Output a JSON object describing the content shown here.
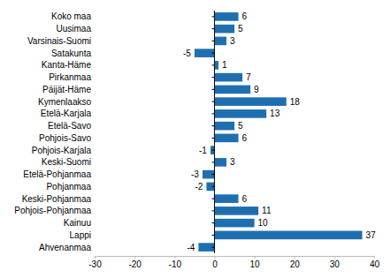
{
  "chart_data": {
    "type": "bar",
    "orientation": "horizontal",
    "categories": [
      "Koko maa",
      "Uusimaa",
      "Varsinais-Suomi",
      "Satakunta",
      "Kanta-Häme",
      "Pirkanmaa",
      "Päijät-Häme",
      "Kymenlaakso",
      "Etelä-Karjala",
      "Etelä-Savo",
      "Pohjois-Savo",
      "Pohjois-Karjala",
      "Keski-Suomi",
      "Etelä-Pohjanmaa",
      "Pohjanmaa",
      "Keski-Pohjanmaa",
      "Pohjois-Pohjanmaa",
      "Kainuu",
      "Lappi",
      "Ahvenanmaa"
    ],
    "values": [
      6,
      5,
      3,
      -5,
      1,
      7,
      9,
      18,
      13,
      5,
      6,
      -1,
      3,
      -3,
      -2,
      6,
      11,
      10,
      37,
      -4
    ],
    "color": "#1f6fb0",
    "xlim": [
      -30,
      40
    ],
    "xticks": [
      -30,
      -20,
      -10,
      0,
      10,
      20,
      30,
      40
    ],
    "grid": false,
    "data_labels": true
  }
}
